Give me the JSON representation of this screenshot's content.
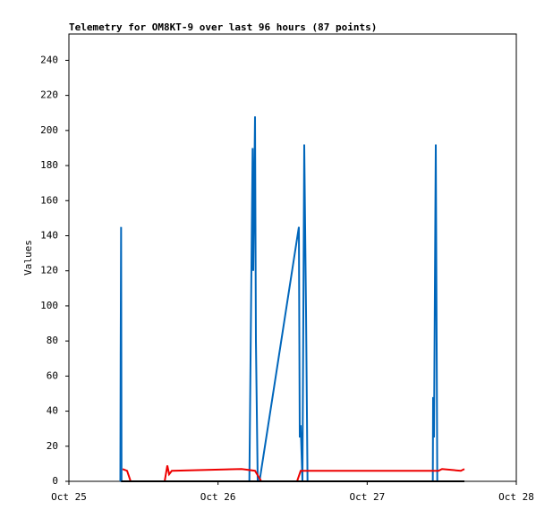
{
  "chart_data": {
    "type": "line",
    "title": "Telemetry for OM8KT-9 over last 96 hours (87 points)",
    "y_label": "Values",
    "xlim": [
      0,
      3
    ],
    "xticks": [
      {
        "value": 0,
        "label": "Oct 25"
      },
      {
        "value": 1,
        "label": "Oct 26"
      },
      {
        "value": 2,
        "label": "Oct 27"
      },
      {
        "value": 3,
        "label": "Oct 28"
      }
    ],
    "ylim": [
      0,
      255
    ],
    "yticks": [
      0,
      20,
      40,
      60,
      80,
      100,
      120,
      140,
      160,
      180,
      200,
      220,
      240
    ],
    "grid": false,
    "series": [
      {
        "color": "#0066bb",
        "x": [
          0.345,
          0.347,
          0.35,
          0.353,
          1.21,
          1.212,
          1.216,
          1.22,
          1.224,
          1.228,
          1.232,
          1.236,
          1.248,
          1.254,
          1.26,
          1.266,
          1.278,
          1.542,
          1.548,
          1.554,
          1.566,
          1.578,
          1.59,
          1.6,
          2.44,
          2.442,
          2.448,
          2.46,
          2.47
        ],
        "values": [
          0,
          72,
          145,
          0,
          0,
          17,
          52,
          87,
          122,
          157,
          190,
          120,
          208,
          80,
          40,
          0,
          0,
          145,
          25,
          32,
          0,
          192,
          97,
          0,
          0,
          48,
          25,
          192,
          0
        ]
      },
      {
        "color": "#ee0000",
        "x": [
          0.36,
          0.39,
          0.414,
          0.642,
          0.66,
          0.672,
          0.69,
          1.158,
          1.248,
          1.29,
          1.53,
          1.554,
          2.478,
          2.502,
          2.628,
          2.652
        ],
        "values": [
          7,
          6,
          0,
          0,
          9,
          4,
          6,
          7,
          6,
          0,
          0,
          6,
          6,
          7,
          6,
          7
        ]
      },
      {
        "color": "#000000",
        "x": [
          0.35,
          2.652
        ],
        "values": [
          0,
          0
        ]
      }
    ]
  }
}
